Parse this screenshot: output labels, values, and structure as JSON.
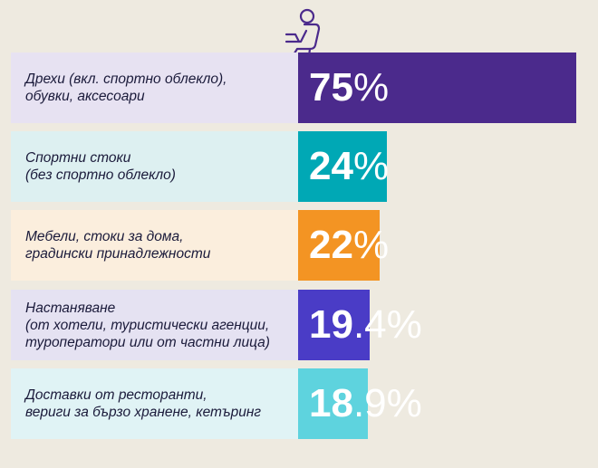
{
  "chart_data": {
    "type": "bar",
    "orientation": "horizontal",
    "categories": [
      "Дрехи (вкл. спортно облекло),\nобувки, аксесоари",
      "Спортни стоки\n(без спортно облекло)",
      "Мебели, стоки за дома,\nградински принадлежности",
      "Настаняване\n(от хотели, туристически агенции,\nтуроператори или от частни лица)",
      "Доставки от ресторанти,\nвериги за бързо хранене, кетъринг"
    ],
    "values": [
      75,
      24,
      22,
      19.4,
      18.9
    ],
    "value_labels": [
      {
        "int": "75",
        "rest": "%"
      },
      {
        "int": "24",
        "rest": "%"
      },
      {
        "int": "22",
        "rest": "%"
      },
      {
        "int": "19",
        "rest": ".4%"
      },
      {
        "int": "18",
        "rest": ".9%"
      }
    ],
    "bar_colors": [
      "#4b2a8c",
      "#00a8b5",
      "#f39423",
      "#4a3cc6",
      "#5ed3de"
    ],
    "label_bg_colors": [
      "#e7e2f2",
      "#ddf0f1",
      "#fbeedd",
      "#e5e2f2",
      "#e0f3f5"
    ],
    "icon": "person-with-laptop-icon",
    "legend": "none",
    "grid": false
  }
}
